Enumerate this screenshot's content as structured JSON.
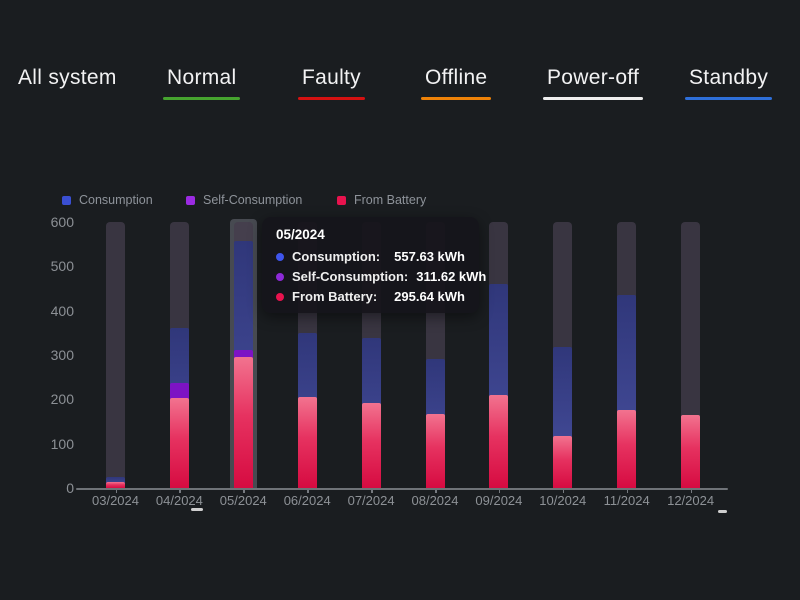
{
  "nav": {
    "items": [
      {
        "label": "All system",
        "underline": null
      },
      {
        "label": "Normal",
        "underline": "#46a42f"
      },
      {
        "label": "Faulty",
        "underline": "#d51111"
      },
      {
        "label": "Offline",
        "underline": "#ee8208"
      },
      {
        "label": "Power-off",
        "underline": "#ededed"
      },
      {
        "label": "Standby",
        "underline": "#2e6fd9"
      }
    ]
  },
  "legend": {
    "items": [
      {
        "label": "Consumption",
        "color": "#3a4fd2"
      },
      {
        "label": "Self-Consumption",
        "color": "#9b2be2"
      },
      {
        "label": "From Battery",
        "color": "#e8134e"
      }
    ]
  },
  "tooltip": {
    "title": "05/2024",
    "rows": [
      {
        "label": "Consumption:",
        "value": "557.63 kWh",
        "dot": "#3f55ec"
      },
      {
        "label": "Self-Consumption:",
        "value": "311.62 kWh",
        "dot": "#8d2ad8"
      },
      {
        "label": "From Battery:",
        "value": "295.64 kWh",
        "dot": "#e8134e"
      }
    ]
  },
  "chart_data": {
    "type": "bar",
    "mode": "overlapping-bars-on-background-track",
    "unit": "kWh",
    "categories": [
      "03/2024",
      "04/2024",
      "05/2024",
      "06/2024",
      "07/2024",
      "08/2024",
      "09/2024",
      "10/2024",
      "11/2024",
      "12/2024"
    ],
    "series": [
      {
        "name": "Consumption",
        "color": "#3d4489",
        "values": [
          25,
          362,
          557.63,
          350,
          338,
          291,
          460,
          318,
          435,
          0
        ]
      },
      {
        "name": "Self-Consumption",
        "color": "#7d13c4",
        "values": [
          12,
          237,
          311.62,
          195,
          185,
          160,
          205,
          112,
          170,
          0
        ]
      },
      {
        "name": "From Battery",
        "color": "#e8134e",
        "values": [
          13,
          204,
          295.64,
          205,
          192,
          167,
          210,
          117,
          176,
          165
        ]
      }
    ],
    "ylim": [
      0,
      600
    ],
    "yticks": [
      0,
      100,
      200,
      300,
      400,
      500,
      600
    ],
    "background_track_max": 600,
    "highlighted_category": "05/2024",
    "legend_position": "top-left",
    "grid": false
  }
}
